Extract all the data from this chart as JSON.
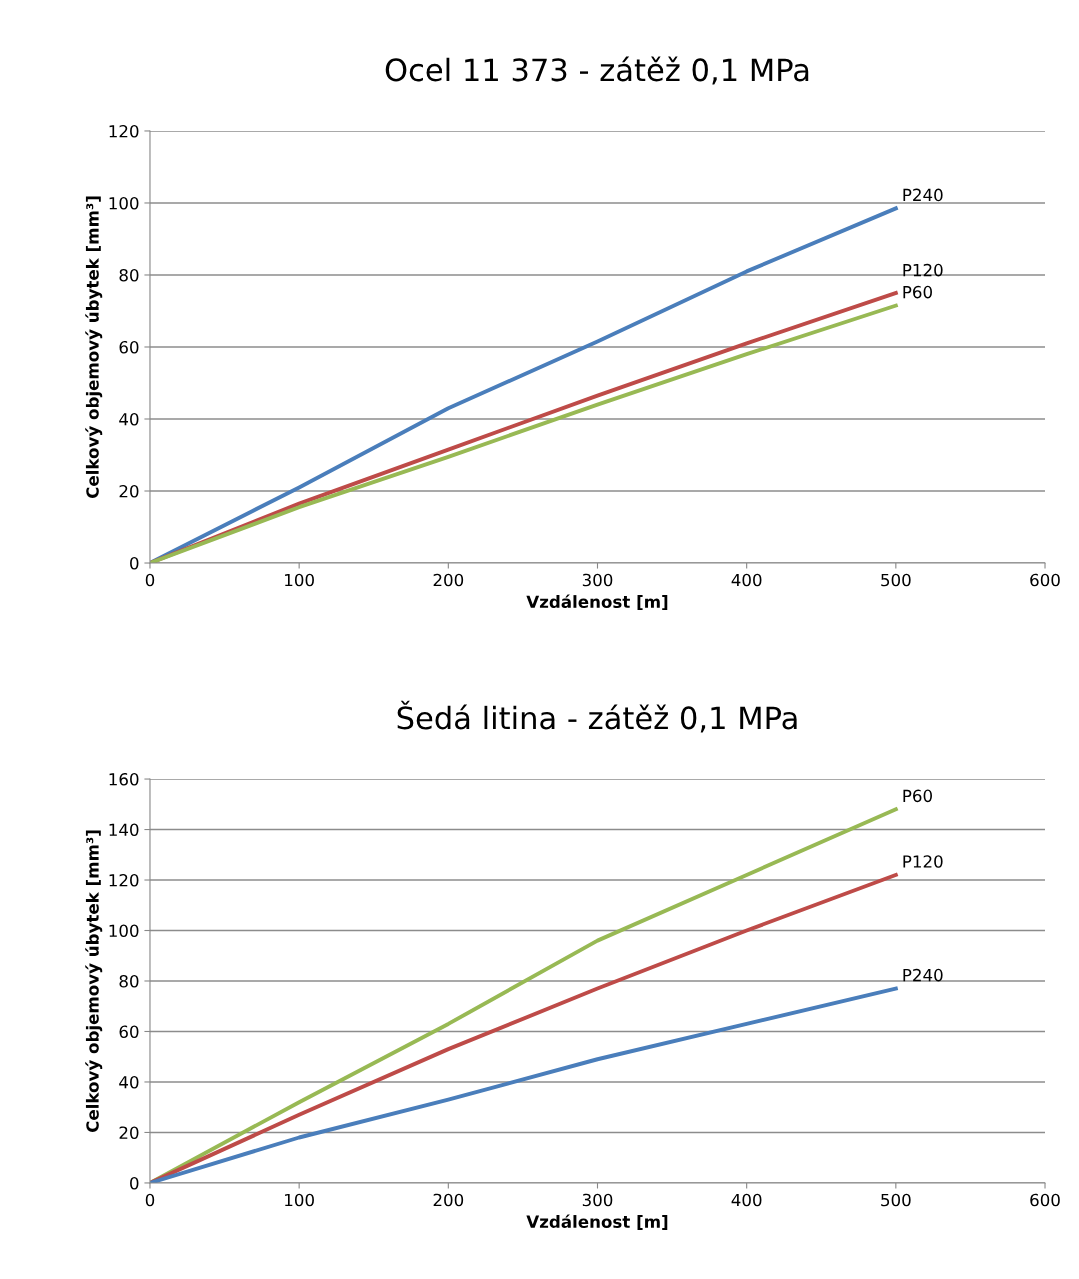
{
  "chart_data": [
    {
      "type": "line",
      "title": "Ocel 11 373 - zátěž 0,1 MPa",
      "xlabel": "Vzdálenost [m]",
      "ylabel": "Celkový objemový úbytek [mm³]",
      "xlim": [
        0,
        600
      ],
      "xticks": [
        0,
        100,
        200,
        300,
        400,
        500,
        600
      ],
      "ylim": [
        0,
        120
      ],
      "yticks": [
        0,
        20,
        40,
        60,
        80,
        100,
        120
      ],
      "grid": "y",
      "legend": false,
      "marker": "none",
      "line_style": "solid",
      "x": [
        0,
        100,
        200,
        300,
        400,
        500
      ],
      "series": [
        {
          "name": "P240",
          "color": "#4a7ebb",
          "values": [
            0,
            21,
            43,
            61.5,
            81,
            98.5
          ]
        },
        {
          "name": "P120",
          "color": "#be4b48",
          "values": [
            0,
            16.5,
            31.5,
            46.5,
            61,
            75
          ]
        },
        {
          "name": "P60",
          "color": "#98b954",
          "values": [
            0,
            15.5,
            29.5,
            44,
            58,
            71.5
          ]
        }
      ]
    },
    {
      "type": "line",
      "title": "Šedá litina - zátěž 0,1 MPa",
      "xlabel": "Vzdálenost [m]",
      "ylabel": "Celkový objemový úbytek [mm³]",
      "xlim": [
        0,
        600
      ],
      "xticks": [
        0,
        100,
        200,
        300,
        400,
        500,
        600
      ],
      "ylim": [
        0,
        160
      ],
      "yticks": [
        0,
        20,
        40,
        60,
        80,
        100,
        120,
        140,
        160
      ],
      "grid": "y",
      "legend": false,
      "marker": "none",
      "line_style": "solid",
      "x": [
        0,
        100,
        200,
        300,
        400,
        500
      ],
      "series": [
        {
          "name": "P60",
          "color": "#98b954",
          "values": [
            0,
            32,
            63,
            96,
            122,
            148
          ]
        },
        {
          "name": "P120",
          "color": "#be4b48",
          "values": [
            0,
            27,
            53,
            77,
            100,
            122
          ]
        },
        {
          "name": "P240",
          "color": "#4a7ebb",
          "values": [
            0,
            18,
            33,
            49,
            63,
            77
          ]
        }
      ]
    }
  ]
}
